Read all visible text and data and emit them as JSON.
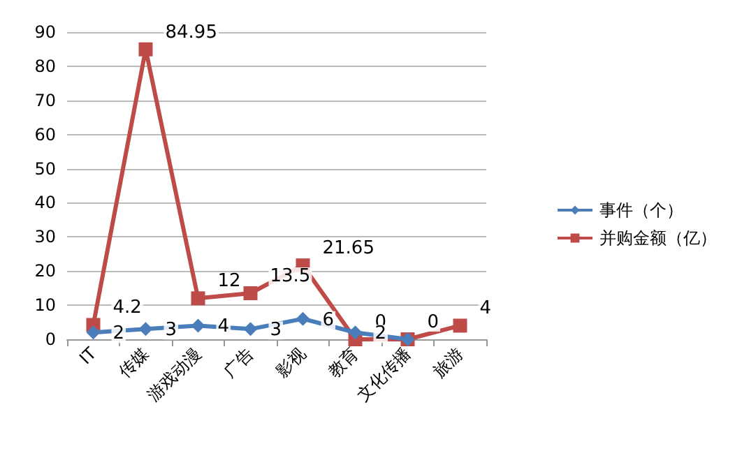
{
  "chart_data": {
    "type": "line",
    "categories": [
      "IT",
      "传媒",
      "游戏动漫",
      "广告",
      "影视",
      "教育",
      "文化传播",
      "旅游"
    ],
    "series": [
      {
        "name": "事件（个）",
        "color": "#4a7ebb",
        "marker": "diamond",
        "values": [
          2,
          3,
          4,
          3,
          6,
          2,
          0,
          null
        ],
        "value_labels": [
          "2",
          "3",
          "4",
          "3",
          "6",
          "2",
          null,
          null
        ]
      },
      {
        "name": "并购金额（亿）",
        "color": "#be4b48",
        "marker": "square",
        "values": [
          4.2,
          84.95,
          12,
          13.5,
          21.65,
          0,
          0,
          4
        ],
        "value_labels": [
          "4.2",
          "84.95",
          "12",
          "13.5",
          "21.65",
          "0",
          "0",
          "4"
        ]
      }
    ],
    "ylim": [
      0,
      90
    ],
    "yticks": [
      0,
      10,
      20,
      30,
      40,
      50,
      60,
      70,
      80,
      90
    ],
    "grid": "y",
    "legend": "right"
  }
}
